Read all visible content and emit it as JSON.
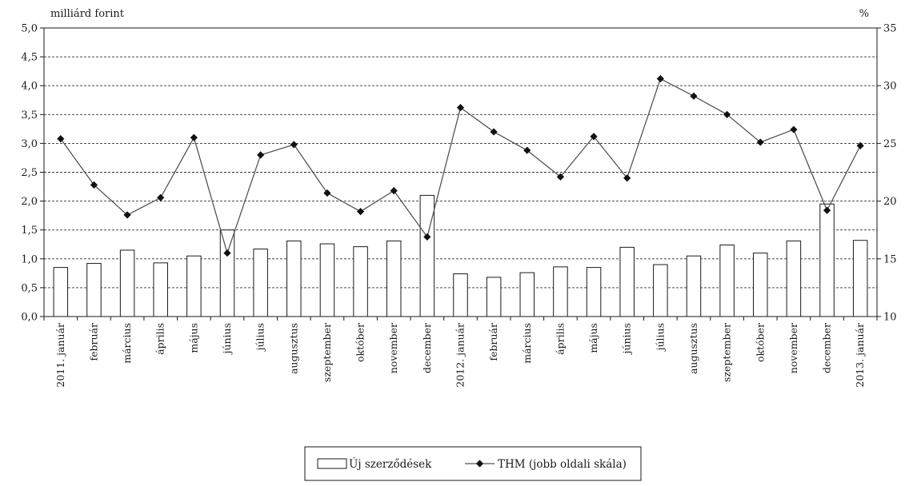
{
  "chart_data": {
    "type": "bar+line",
    "title": "",
    "left_axis": {
      "label": "milliárd forint",
      "ylim": [
        0,
        5
      ],
      "ticks": [
        "0,0",
        "0,5",
        "1,0",
        "1,5",
        "2,0",
        "2,5",
        "3,0",
        "3,5",
        "4,0",
        "4,5",
        "5,0"
      ]
    },
    "right_axis": {
      "label": "%",
      "ylim": [
        10,
        35
      ],
      "ticks": [
        "10",
        "15",
        "20",
        "25",
        "30",
        "35"
      ]
    },
    "grid": true,
    "legend_position": "bottom-center",
    "categories": [
      "2011. január",
      "február",
      "március",
      "április",
      "május",
      "június",
      "július",
      "augusztus",
      "szeptember",
      "október",
      "november",
      "december",
      "2012. január",
      "február",
      "március",
      "április",
      "május",
      "június",
      "július",
      "augusztus",
      "szeptember",
      "október",
      "november",
      "december",
      "2013. január"
    ],
    "series": [
      {
        "name": "Új szerződések",
        "type": "bar",
        "axis": "left",
        "values": [
          0.85,
          0.92,
          1.15,
          0.93,
          1.05,
          1.5,
          1.17,
          1.31,
          1.26,
          1.21,
          1.31,
          2.1,
          0.74,
          0.68,
          0.76,
          0.86,
          0.85,
          1.2,
          0.9,
          1.05,
          1.24,
          1.1,
          1.31,
          1.95,
          1.32
        ]
      },
      {
        "name": "THM (jobb oldali skála)",
        "type": "line",
        "axis": "right",
        "marker": "diamond",
        "values": [
          25.4,
          21.4,
          18.8,
          20.3,
          25.5,
          15.5,
          24.0,
          24.9,
          20.7,
          19.1,
          20.9,
          16.9,
          28.1,
          26.0,
          24.4,
          22.1,
          25.6,
          22.0,
          30.6,
          29.1,
          27.5,
          25.1,
          26.2,
          19.2,
          24.8
        ]
      }
    ]
  }
}
